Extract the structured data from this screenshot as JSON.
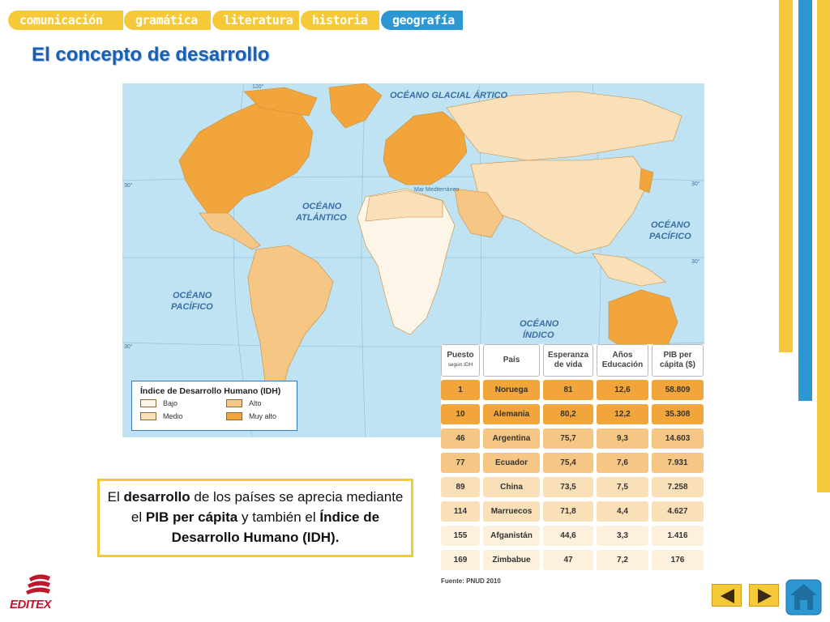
{
  "nav": {
    "tabs": [
      {
        "label": "comunicación",
        "active": false
      },
      {
        "label": "gramática",
        "active": false
      },
      {
        "label": "literatura",
        "active": false
      },
      {
        "label": "historia",
        "active": false
      },
      {
        "label": "geografía",
        "active": true
      }
    ]
  },
  "page": {
    "title": "El concepto de desarrollo"
  },
  "map": {
    "labels": {
      "arctic": "OCÉANO GLACIAL ÁRTICO",
      "atlantic_1": "OCÉANO",
      "atlantic_2": "ATLÁNTICO",
      "pacific_e_1": "OCÉANO",
      "pacific_e_2": "PACÍFICO",
      "pacific_w_1": "OCÉANO",
      "pacific_w_2": "PACÍFICO",
      "indian_1": "OCÉANO",
      "indian_2": "ÍNDICO",
      "mediterranean": "Mar Mediterráneo",
      "deg_120": "120°",
      "deg_30n": "30°",
      "deg_30s": "30°",
      "deg_30n_r": "30°",
      "deg_30s_r": "30°"
    },
    "colors": {
      "ocean": "#bfe3f2",
      "bajo": "#fdf6e8",
      "medio": "#fae0b8",
      "alto": "#f6c684",
      "muy_alto": "#f1a53a"
    }
  },
  "legend": {
    "title": "Índice de Desarrollo Humano (IDH)",
    "items": [
      {
        "label": "Bajo",
        "color": "#fdf6e8"
      },
      {
        "label": "Alto",
        "color": "#f6c684"
      },
      {
        "label": "Medio",
        "color": "#fae0b8"
      },
      {
        "label": "Muy alto",
        "color": "#f1a53a"
      }
    ]
  },
  "table": {
    "headers": {
      "rank_main": "Puesto",
      "rank_sub": "según IDH",
      "country": "País",
      "life_1": "Esperanza",
      "life_2": "de vida",
      "edu_1": "Años",
      "edu_2": "Educación",
      "gdp_1": "PIB per",
      "gdp_2": "cápita ($)"
    },
    "rows": [
      {
        "rank": "1",
        "country": "Noruega",
        "life": "81",
        "edu": "12,6",
        "gdp": "58.809"
      },
      {
        "rank": "10",
        "country": "Alemania",
        "life": "80,2",
        "edu": "12,2",
        "gdp": "35.308"
      },
      {
        "rank": "46",
        "country": "Argentina",
        "life": "75,7",
        "edu": "9,3",
        "gdp": "14.603"
      },
      {
        "rank": "77",
        "country": "Ecuador",
        "life": "75,4",
        "edu": "7,6",
        "gdp": "7.931"
      },
      {
        "rank": "89",
        "country": "China",
        "life": "73,5",
        "edu": "7,5",
        "gdp": "7.258"
      },
      {
        "rank": "114",
        "country": "Marruecos",
        "life": "71,8",
        "edu": "4,4",
        "gdp": "4.627"
      },
      {
        "rank": "155",
        "country": "Afganistán",
        "life": "44,6",
        "edu": "3,3",
        "gdp": "1.416"
      },
      {
        "rank": "169",
        "country": "Zimbabue",
        "life": "47",
        "edu": "7,2",
        "gdp": "176"
      }
    ],
    "row_colors": [
      "#f1a53a",
      "#f1a53a",
      "#f6c684",
      "#f6c684",
      "#fae0b8",
      "#fae0b8",
      "#fdf1dd",
      "#fdf1dd"
    ],
    "source": "Fuente: PNUD 2010"
  },
  "textbox": {
    "part1": "El ",
    "bold1": "desarrollo",
    "part2": " de los países se aprecia mediante el ",
    "bold2": "PIB per cápita",
    "part3": " y también el ",
    "bold3": "Índice de Desarrollo Humano (IDH)."
  },
  "logo": {
    "text": "EDITEX",
    "color": "#c0152a"
  },
  "buttons": {
    "prev_icon": "arrow-left-icon",
    "next_icon": "arrow-right-icon",
    "home_icon": "home-icon"
  }
}
